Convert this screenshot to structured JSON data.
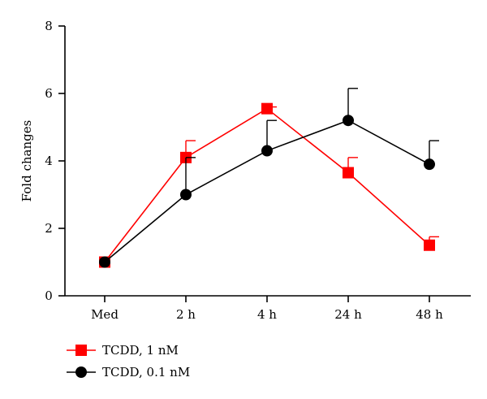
{
  "chart_data": {
    "type": "line",
    "title": "",
    "xlabel": "",
    "ylabel": "Fold changes",
    "categories": [
      "Med",
      "2 h",
      "4 h",
      "24 h",
      "48 h"
    ],
    "ylim": [
      0,
      8
    ],
    "yticks": [
      0,
      2,
      4,
      6,
      8
    ],
    "grid": false,
    "legend_position": "bottom-left",
    "series": [
      {
        "name": "TCDD, 1 nM",
        "color": "#ff0000",
        "marker": "square",
        "values": [
          1.0,
          4.1,
          5.55,
          3.65,
          1.5
        ],
        "error_upper": [
          0,
          0.5,
          0.05,
          0.45,
          0.25
        ]
      },
      {
        "name": "TCDD, 0.1 nM",
        "color": "#000000",
        "marker": "circle",
        "values": [
          1.0,
          3.0,
          4.3,
          5.2,
          3.9
        ],
        "error_upper": [
          0,
          1.1,
          0.9,
          0.95,
          0.7
        ]
      }
    ]
  }
}
